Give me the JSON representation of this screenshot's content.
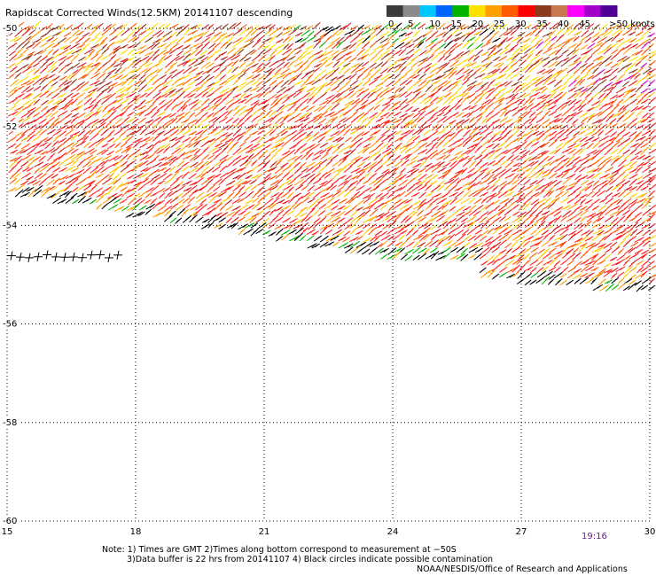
{
  "title": "Rapidscat Corrected Winds(12.5KM) 20141107 descending",
  "colorbar": {
    "labels": [
      "0",
      "5",
      "10",
      "15",
      "20",
      "25",
      "30",
      "35",
      "40",
      "45",
      ">50 knots"
    ],
    "colors": [
      "#3a3a3a",
      "#8a8a8a",
      "#00c8ff",
      "#0064ff",
      "#00b400",
      "#ffe000",
      "#ffa000",
      "#ff5a00",
      "#ff0000",
      "#8b3a1e",
      "#c87850",
      "#ff00ff",
      "#a000c8",
      "#500096"
    ]
  },
  "axes": {
    "x_ticks": [
      "15",
      "18",
      "21",
      "24",
      "27",
      "30"
    ],
    "y_ticks": [
      "-50",
      "-52",
      "-54",
      "-56",
      "-58",
      "-60"
    ],
    "x_range": [
      15,
      30
    ],
    "y_range": [
      -60,
      -50
    ]
  },
  "timestamp": "19:16",
  "notes": [
    "Note: 1) Times are GMT 2)Times along bottom correspond to measurement at −50S",
    "3)Data buffer is 22 hrs from 20141107 4) Black circles indicate possible contamination"
  ],
  "credit": "NOAA/NESDIS/Office of Research and Applications"
}
